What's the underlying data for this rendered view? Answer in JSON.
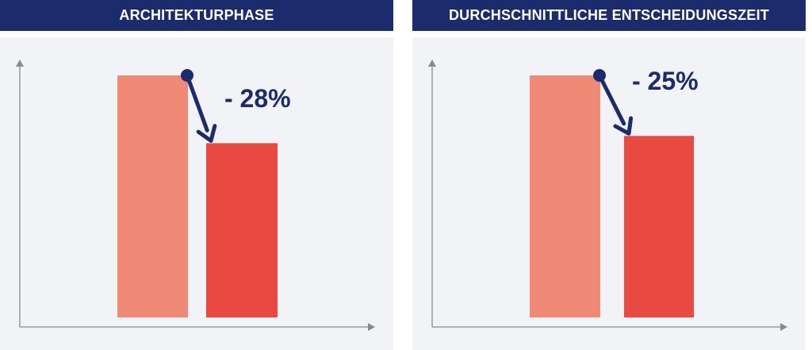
{
  "colors": {
    "header_bg": "#1b2b6b",
    "plot_bg": "#f2f3f7",
    "bar_before": "#ef8a76",
    "bar_after": "#e84a42",
    "arrow": "#1b2b6b",
    "axis": "#8a8a8a"
  },
  "chart_data": [
    {
      "type": "bar",
      "title": "ARCHITEKTURPHASE",
      "categories": [
        "",
        ""
      ],
      "values": [
        100,
        72
      ],
      "change_label": "- 28%",
      "xlabel": "",
      "ylabel": "",
      "ylim": [
        0,
        100
      ],
      "grid": false
    },
    {
      "type": "bar",
      "title": "DURCHSCHNITTLICHE ENTSCHEIDUNGSZEIT",
      "categories": [
        "",
        ""
      ],
      "values": [
        100,
        75
      ],
      "change_label": "- 25%",
      "xlabel": "",
      "ylabel": "",
      "ylim": [
        0,
        100
      ],
      "grid": false
    }
  ]
}
